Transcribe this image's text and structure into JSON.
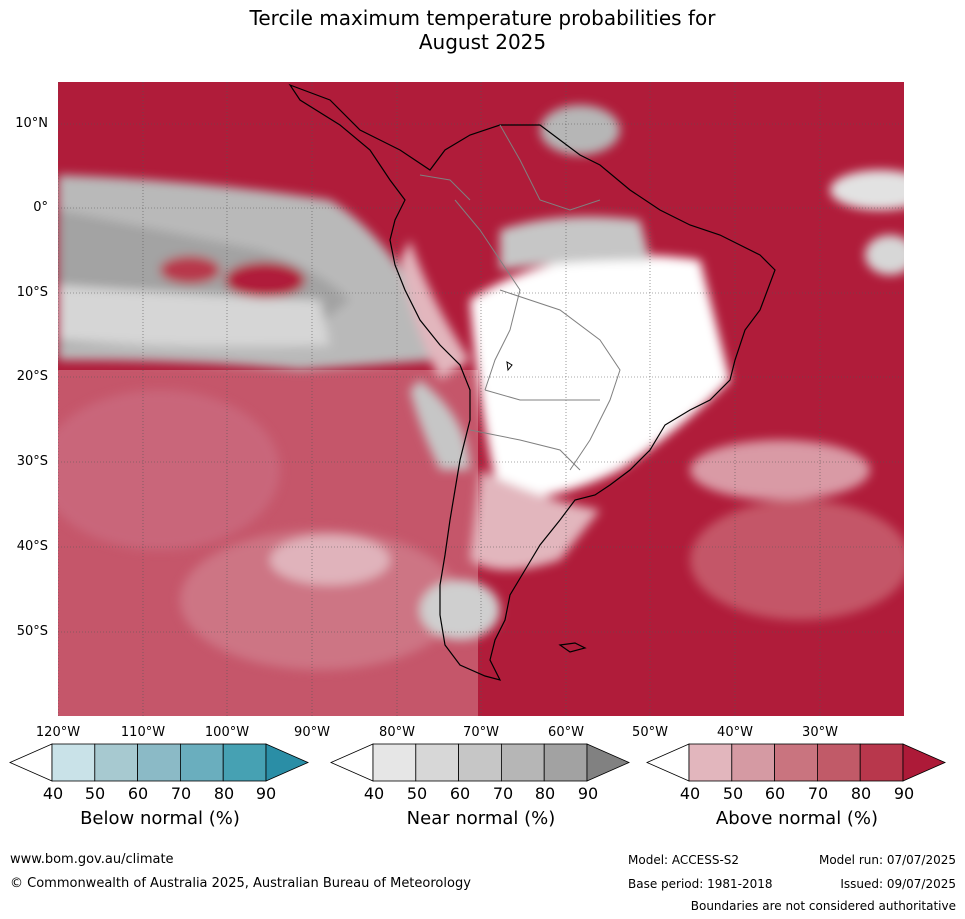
{
  "title": {
    "line1": "Tercile maximum temperature probabilities for",
    "line2": "August 2025"
  },
  "map": {
    "lat_labels": [
      "10°N",
      "0°",
      "10°S",
      "20°S",
      "30°S",
      "40°S",
      "50°S"
    ],
    "lon_labels": [
      "120°W",
      "110°W",
      "100°W",
      "90°W",
      "80°W",
      "70°W",
      "60°W",
      "50°W",
      "40°W",
      "30°W"
    ],
    "grid": "on",
    "colors": {
      "ocean_above_high": "#b01c3a",
      "land_outline": "#000000",
      "border_outline": "#808080"
    }
  },
  "colorbars": [
    {
      "name": "below",
      "label": "Below normal (%)",
      "ticks": [
        "40",
        "50",
        "60",
        "70",
        "80",
        "90"
      ],
      "colors": [
        "#ffffff",
        "#c9e2e8",
        "#a7c9d0",
        "#8bbac6",
        "#6aaebe",
        "#46a1b3",
        "#2a8ea6"
      ]
    },
    {
      "name": "near",
      "label": "Near normal (%)",
      "ticks": [
        "40",
        "50",
        "60",
        "70",
        "80",
        "90"
      ],
      "colors": [
        "#ffffff",
        "#e6e6e6",
        "#d7d7d7",
        "#c6c6c6",
        "#b6b6b6",
        "#a2a2a2",
        "#818181"
      ]
    },
    {
      "name": "above",
      "label": "Above normal (%)",
      "ticks": [
        "40",
        "50",
        "60",
        "70",
        "80",
        "90"
      ],
      "colors": [
        "#ffffff",
        "#e2b6bd",
        "#d59aa3",
        "#c9747f",
        "#c15a68",
        "#b8374c",
        "#ad1a38"
      ]
    }
  ],
  "footer": {
    "website": "www.bom.gov.au/climate",
    "copyright": "© Commonwealth of Australia 2025, Australian Bureau of Meteorology",
    "model": "Model: ACCESS-S2",
    "base_period": "Base period: 1981-2018",
    "model_run": "Model run: 07/07/2025",
    "issued": "Issued: 09/07/2025",
    "disclaimer": "Boundaries are not considered authoritative"
  }
}
